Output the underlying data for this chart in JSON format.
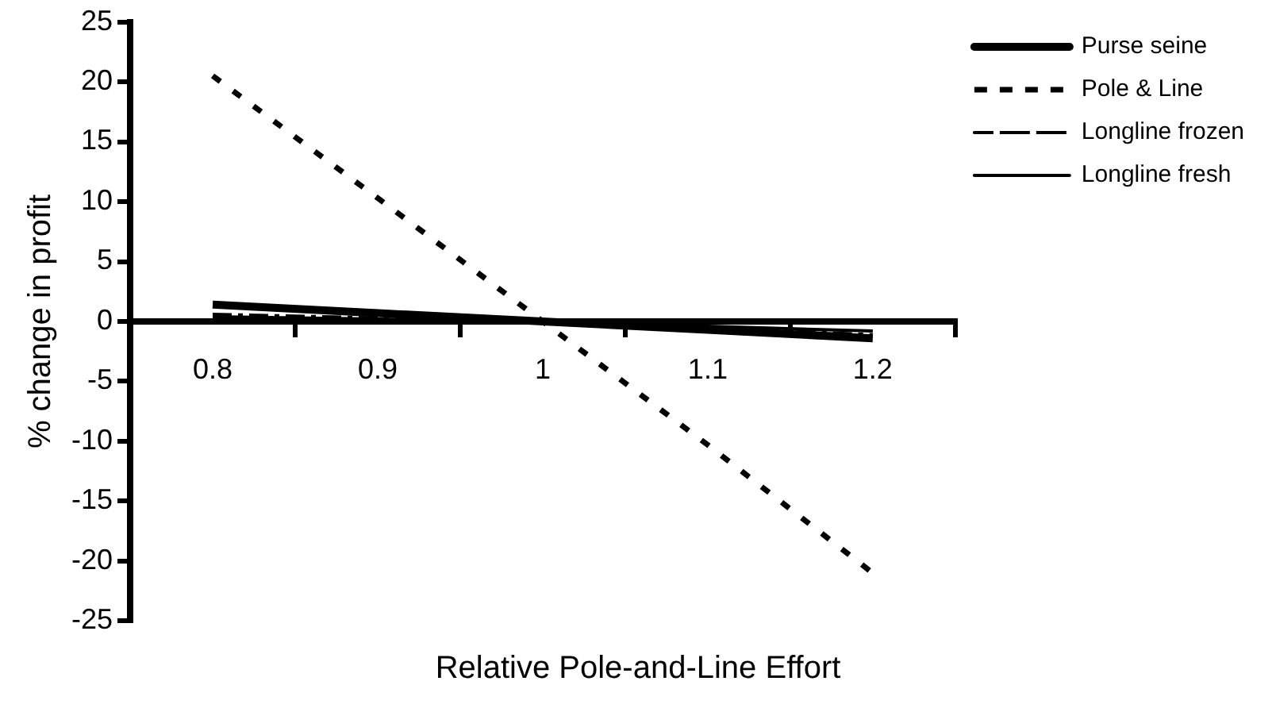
{
  "chart_data": {
    "type": "line",
    "xlabel": "Relative Pole-and-Line Effort",
    "ylabel": "% change in profit",
    "categories": [
      "0.8",
      "0.9",
      "1",
      "1.1",
      "1.2"
    ],
    "ylim": [
      -25,
      25
    ],
    "yticks": [
      -25,
      -20,
      -15,
      -10,
      -5,
      0,
      5,
      10,
      15,
      20,
      25
    ],
    "grid": false,
    "legend": "top right",
    "marker": "none",
    "series": [
      {
        "name": "Purse seine",
        "color": "#000000",
        "line_style": "solid",
        "values": [
          1.4,
          0.7,
          0,
          -0.7,
          -1.4
        ]
      },
      {
        "name": "Pole & Line",
        "color": "#000000",
        "line_style": "dashed",
        "values": [
          20.5,
          10.3,
          0,
          -10.3,
          -21
        ]
      },
      {
        "name": "Longline frozen",
        "color": "#000000",
        "line_style": "dashdot",
        "values": [
          0.6,
          0.3,
          0,
          -0.5,
          -1.1
        ]
      },
      {
        "name": "Longline fresh",
        "color": "#000000",
        "line_style": "solid",
        "values": [
          0.4,
          0.2,
          0,
          -0.4,
          -0.8
        ]
      }
    ]
  }
}
